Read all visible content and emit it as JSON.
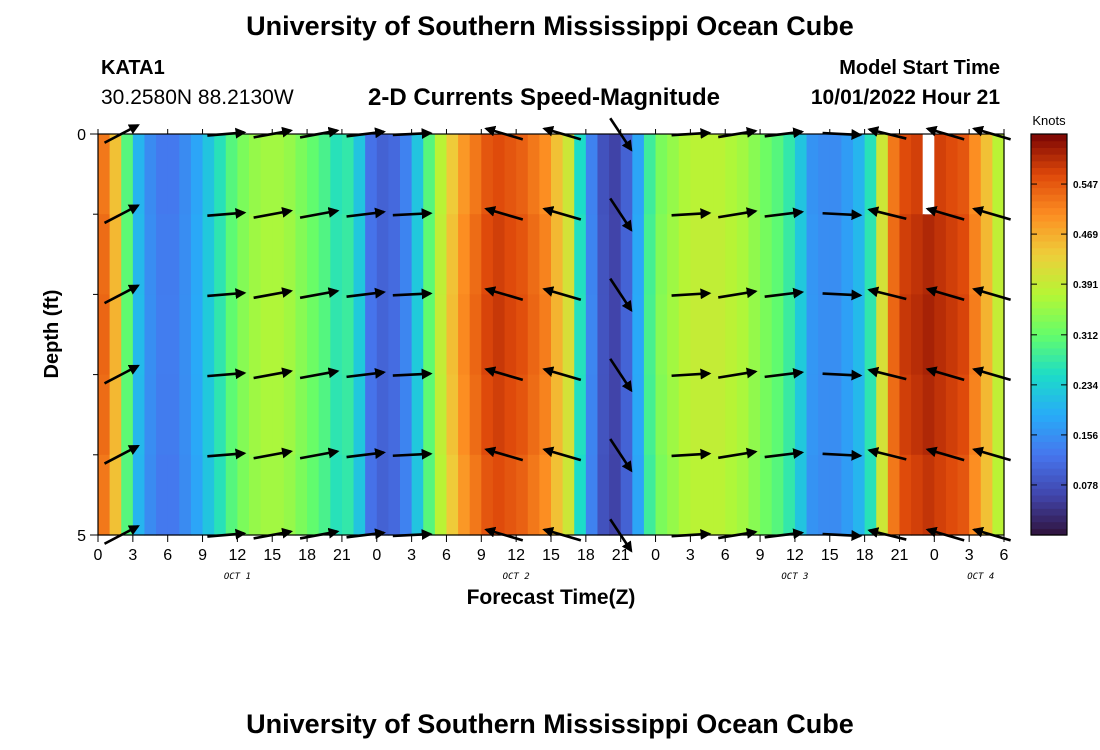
{
  "page": {
    "title_top": "University of Southern Mississippi Ocean Cube",
    "title_bottom": "University of Southern Mississippi Ocean Cube",
    "station_id": "KATA1",
    "coordinates": "30.2580N  88.2130W",
    "subtitle": "2-D Currents Speed-Magnitude",
    "model_start_label": "Model Start Time",
    "model_start_value": "10/01/2022 Hour 21"
  },
  "chart_data": {
    "type": "heatmap",
    "title": "2-D Currents Speed-Magnitude",
    "xlabel": "Forecast Time(Z)",
    "ylabel": "Depth (ft)",
    "x_start_hour_of_oct1": 0,
    "x_range_hours": [
      0,
      78
    ],
    "ylim": [
      0,
      5
    ],
    "y_ticks": [
      {
        "value": 0,
        "label": "0"
      },
      {
        "value": 5,
        "label": "5"
      }
    ],
    "y_minor_ticks": [
      1,
      2,
      3,
      4
    ],
    "x_ticks": [
      {
        "hour": 0,
        "label": "0"
      },
      {
        "hour": 3,
        "label": "3"
      },
      {
        "hour": 6,
        "label": "6"
      },
      {
        "hour": 9,
        "label": "9"
      },
      {
        "hour": 12,
        "label": "12"
      },
      {
        "hour": 15,
        "label": "15"
      },
      {
        "hour": 18,
        "label": "18"
      },
      {
        "hour": 21,
        "label": "21"
      },
      {
        "hour": 24,
        "label": "0"
      },
      {
        "hour": 27,
        "label": "3"
      },
      {
        "hour": 30,
        "label": "6"
      },
      {
        "hour": 33,
        "label": "9"
      },
      {
        "hour": 36,
        "label": "12"
      },
      {
        "hour": 39,
        "label": "15"
      },
      {
        "hour": 42,
        "label": "18"
      },
      {
        "hour": 45,
        "label": "21"
      },
      {
        "hour": 48,
        "label": "0"
      },
      {
        "hour": 51,
        "label": "3"
      },
      {
        "hour": 54,
        "label": "6"
      },
      {
        "hour": 57,
        "label": "9"
      },
      {
        "hour": 60,
        "label": "12"
      },
      {
        "hour": 63,
        "label": "15"
      },
      {
        "hour": 66,
        "label": "18"
      },
      {
        "hour": 69,
        "label": "21"
      },
      {
        "hour": 72,
        "label": "0"
      },
      {
        "hour": 75,
        "label": "3"
      },
      {
        "hour": 78,
        "label": "6"
      }
    ],
    "day_labels": [
      {
        "hour": 12,
        "label": "OCT 1"
      },
      {
        "hour": 36,
        "label": "OCT 2"
      },
      {
        "hour": 60,
        "label": "OCT 3"
      },
      {
        "hour": 76,
        "label": "OCT 4"
      }
    ],
    "colorbar": {
      "label": "Knots",
      "range": [
        0.0,
        0.625
      ],
      "ticks": [
        0.547,
        0.469,
        0.391,
        0.312,
        0.234,
        0.156,
        0.078
      ]
    },
    "speed_by_hour_knots": [
      0.52,
      0.45,
      0.3,
      0.2,
      0.15,
      0.13,
      0.13,
      0.15,
      0.18,
      0.22,
      0.26,
      0.3,
      0.33,
      0.35,
      0.36,
      0.36,
      0.35,
      0.33,
      0.31,
      0.29,
      0.26,
      0.27,
      0.22,
      0.12,
      0.1,
      0.11,
      0.14,
      0.22,
      0.3,
      0.38,
      0.44,
      0.49,
      0.52,
      0.55,
      0.56,
      0.55,
      0.54,
      0.52,
      0.5,
      0.45,
      0.4,
      0.25,
      0.14,
      0.08,
      0.06,
      0.1,
      0.18,
      0.28,
      0.33,
      0.35,
      0.37,
      0.38,
      0.38,
      0.38,
      0.37,
      0.36,
      0.34,
      0.32,
      0.3,
      0.27,
      0.22,
      0.16,
      0.15,
      0.15,
      0.17,
      0.2,
      0.26,
      0.4,
      0.52,
      0.56,
      0.57,
      0.58,
      0.57,
      0.56,
      0.55,
      0.5,
      0.45,
      0.38,
      0.3
    ],
    "depth_factor_by_layer": [
      1.0,
      1.02,
      1.03,
      1.02,
      1.0
    ],
    "missing_cells": [
      {
        "hour": 71,
        "layer": 0
      }
    ],
    "vector_depths": [
      0,
      1,
      2,
      3,
      4,
      5
    ],
    "vectors": [
      {
        "hour": 2,
        "u": 0.88,
        "v": 0.46
      },
      {
        "hour": 11,
        "u": 0.97,
        "v": 0.08
      },
      {
        "hour": 15,
        "u": 0.98,
        "v": 0.18
      },
      {
        "hour": 19,
        "u": 0.98,
        "v": 0.18
      },
      {
        "hour": 23,
        "u": 0.98,
        "v": 0.12
      },
      {
        "hour": 27,
        "u": 0.99,
        "v": 0.05
      },
      {
        "hour": 35,
        "u": -0.96,
        "v": 0.28
      },
      {
        "hour": 40,
        "u": -0.96,
        "v": 0.28
      },
      {
        "hour": 45,
        "u": 0.55,
        "v": -0.83
      },
      {
        "hour": 51,
        "u": 0.99,
        "v": 0.06
      },
      {
        "hour": 55,
        "u": 0.98,
        "v": 0.16
      },
      {
        "hour": 59,
        "u": 0.98,
        "v": 0.12
      },
      {
        "hour": 64,
        "u": 0.99,
        "v": -0.05
      },
      {
        "hour": 68,
        "u": -0.97,
        "v": 0.24
      },
      {
        "hour": 73,
        "u": -0.96,
        "v": 0.28
      },
      {
        "hour": 77,
        "u": -0.96,
        "v": 0.28
      }
    ]
  }
}
